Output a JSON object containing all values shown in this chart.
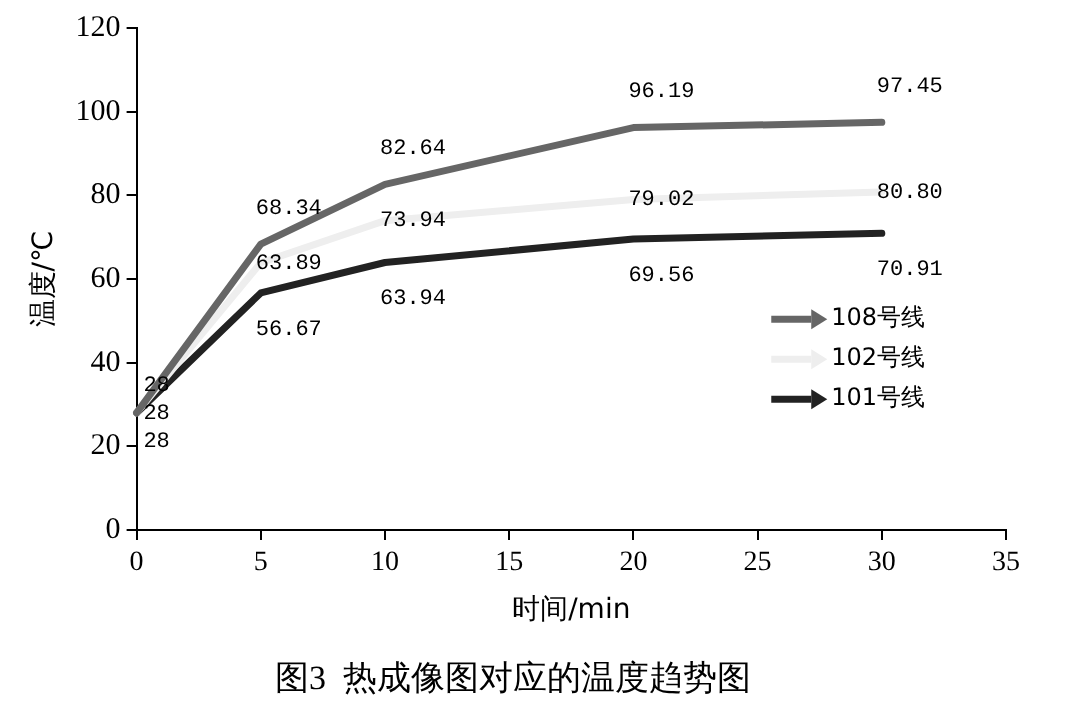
{
  "chart_data": {
    "type": "line",
    "title": "图3  热成像图对应的温度趋势图",
    "xlabel": "时间/min",
    "ylabel": "温度/℃",
    "x": [
      0,
      5,
      10,
      20,
      30
    ],
    "series": [
      {
        "name": "108号线",
        "color": "#666666",
        "values": [
          28,
          68.34,
          82.64,
          96.19,
          97.45
        ],
        "value_labels": [
          "28",
          "68.34",
          "82.64",
          "96.19",
          "97.45"
        ]
      },
      {
        "name": "102号线",
        "color": "#eeeeee",
        "values": [
          28,
          63.89,
          73.94,
          79.02,
          80.8
        ],
        "value_labels": [
          "28",
          "63.89",
          "73.94",
          "79.02",
          "80.80"
        ]
      },
      {
        "name": "101号线",
        "color": "#222222",
        "values": [
          28,
          56.67,
          63.94,
          69.56,
          70.91
        ],
        "value_labels": [
          "28",
          "56.67",
          "63.94",
          "69.56",
          "70.91"
        ]
      }
    ],
    "xlim": [
      0,
      35
    ],
    "xticks": [
      0,
      5,
      10,
      15,
      20,
      25,
      30,
      35
    ],
    "ylim": [
      0,
      120
    ],
    "yticks": [
      0,
      20,
      40,
      60,
      80,
      100,
      120
    ],
    "grid": false,
    "legend": "right",
    "marker": "none",
    "line_style": "solid",
    "data_labels": true
  }
}
